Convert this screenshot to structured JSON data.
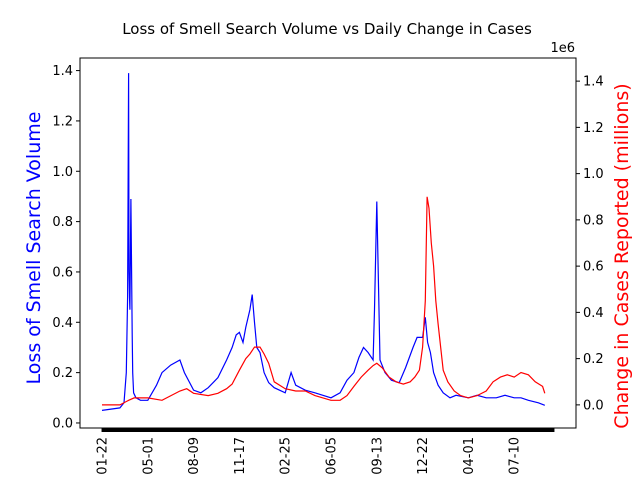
{
  "chart_data": {
    "type": "line",
    "title": "Loss of Smell Search Volume vs Daily Change in Cases",
    "left_axis": {
      "label": "Loss of Smell Search Volume",
      "color": "#0000ff",
      "ylim": [
        -0.02,
        1.45
      ],
      "ticks": [
        "0.0",
        "0.2",
        "0.4",
        "0.6",
        "0.8",
        "1.0",
        "1.2",
        "1.4"
      ]
    },
    "right_axis": {
      "label": "Change in Cases Reported (millions)",
      "color": "#ff0000",
      "offset_text": "1e6",
      "ylim": [
        -0.1,
        1.5
      ],
      "ticks": [
        "0.0",
        "0.2",
        "0.4",
        "0.6",
        "0.8",
        "1.0",
        "1.2",
        "1.4"
      ]
    },
    "x_ticks": [
      "01-22",
      "05-01",
      "08-09",
      "11-17",
      "02-25",
      "06-05",
      "09-13",
      "12-22",
      "04-01",
      "07-10"
    ],
    "x_start_date": "2020-01-22",
    "grid": false,
    "series": [
      {
        "name": "Loss of Smell Search Volume",
        "axis": "left",
        "color": "#0000ff",
        "x": [
          "2020-01-22",
          "2020-03-01",
          "2020-03-10",
          "2020-03-15",
          "2020-03-18",
          "2020-03-20",
          "2020-03-21",
          "2020-03-22",
          "2020-03-23",
          "2020-03-25",
          "2020-03-28",
          "2020-03-29",
          "2020-03-31",
          "2020-04-05",
          "2020-04-15",
          "2020-05-01",
          "2020-05-20",
          "2020-06-01",
          "2020-06-20",
          "2020-07-10",
          "2020-07-20",
          "2020-08-09",
          "2020-08-25",
          "2020-09-10",
          "2020-10-01",
          "2020-10-20",
          "2020-11-01",
          "2020-11-10",
          "2020-11-17",
          "2020-11-25",
          "2020-12-01",
          "2020-12-10",
          "2020-12-15",
          "2020-12-20",
          "2020-12-25",
          "2021-01-01",
          "2021-01-10",
          "2021-01-20",
          "2021-02-01",
          "2021-02-25",
          "2021-03-10",
          "2021-03-20",
          "2021-04-10",
          "2021-05-01",
          "2021-06-05",
          "2021-06-25",
          "2021-07-10",
          "2021-07-25",
          "2021-08-05",
          "2021-08-15",
          "2021-08-25",
          "2021-09-05",
          "2021-09-08",
          "2021-09-13",
          "2021-09-20",
          "2021-10-01",
          "2021-10-15",
          "2021-11-01",
          "2021-11-15",
          "2021-12-01",
          "2021-12-10",
          "2021-12-22",
          "2021-12-28",
          "2022-01-02",
          "2022-01-08",
          "2022-01-15",
          "2022-01-25",
          "2022-02-05",
          "2022-02-20",
          "2022-03-05",
          "2022-04-01",
          "2022-04-20",
          "2022-05-10",
          "2022-06-01",
          "2022-06-20",
          "2022-07-10",
          "2022-07-25",
          "2022-08-10",
          "2022-09-01",
          "2022-09-15"
        ],
        "y": [
          0.05,
          0.06,
          0.08,
          0.2,
          0.5,
          1.39,
          0.6,
          0.5,
          0.45,
          0.89,
          0.35,
          0.2,
          0.12,
          0.1,
          0.09,
          0.09,
          0.15,
          0.2,
          0.23,
          0.25,
          0.2,
          0.13,
          0.12,
          0.14,
          0.18,
          0.25,
          0.3,
          0.35,
          0.36,
          0.32,
          0.38,
          0.45,
          0.51,
          0.4,
          0.3,
          0.28,
          0.2,
          0.16,
          0.14,
          0.12,
          0.2,
          0.15,
          0.13,
          0.12,
          0.1,
          0.12,
          0.17,
          0.2,
          0.26,
          0.3,
          0.28,
          0.25,
          0.45,
          0.88,
          0.25,
          0.2,
          0.17,
          0.16,
          0.22,
          0.3,
          0.34,
          0.34,
          0.42,
          0.32,
          0.28,
          0.2,
          0.15,
          0.12,
          0.1,
          0.11,
          0.1,
          0.11,
          0.1,
          0.1,
          0.11,
          0.1,
          0.1,
          0.09,
          0.08,
          0.07
        ]
      },
      {
        "name": "Change in Cases Reported",
        "axis": "right",
        "color": "#ff0000",
        "x": [
          "2020-01-22",
          "2020-03-01",
          "2020-03-20",
          "2020-04-01",
          "2020-04-20",
          "2020-05-01",
          "2020-06-01",
          "2020-07-10",
          "2020-07-25",
          "2020-08-09",
          "2020-09-10",
          "2020-10-01",
          "2020-10-20",
          "2020-11-01",
          "2020-11-17",
          "2020-12-01",
          "2020-12-10",
          "2020-12-20",
          "2021-01-01",
          "2021-01-10",
          "2021-01-20",
          "2021-02-01",
          "2021-02-25",
          "2021-03-20",
          "2021-04-10",
          "2021-05-01",
          "2021-06-05",
          "2021-06-25",
          "2021-07-10",
          "2021-07-25",
          "2021-08-10",
          "2021-08-25",
          "2021-09-05",
          "2021-09-13",
          "2021-09-25",
          "2021-10-10",
          "2021-10-25",
          "2021-11-10",
          "2021-11-25",
          "2021-12-05",
          "2021-12-15",
          "2021-12-22",
          "2021-12-28",
          "2022-01-01",
          "2022-01-05",
          "2022-01-10",
          "2022-01-15",
          "2022-01-20",
          "2022-01-25",
          "2022-02-05",
          "2022-02-15",
          "2022-03-01",
          "2022-03-15",
          "2022-04-01",
          "2022-04-20",
          "2022-05-10",
          "2022-05-25",
          "2022-06-10",
          "2022-06-25",
          "2022-07-10",
          "2022-07-25",
          "2022-08-10",
          "2022-08-25",
          "2022-09-10",
          "2022-09-15"
        ],
        "y": [
          0.0,
          0.0,
          0.02,
          0.03,
          0.03,
          0.03,
          0.02,
          0.06,
          0.07,
          0.05,
          0.04,
          0.05,
          0.07,
          0.09,
          0.15,
          0.2,
          0.22,
          0.25,
          0.25,
          0.22,
          0.18,
          0.1,
          0.07,
          0.06,
          0.06,
          0.04,
          0.02,
          0.02,
          0.04,
          0.08,
          0.12,
          0.15,
          0.17,
          0.18,
          0.16,
          0.12,
          0.1,
          0.09,
          0.1,
          0.12,
          0.15,
          0.25,
          0.45,
          0.9,
          0.85,
          0.7,
          0.6,
          0.45,
          0.35,
          0.15,
          0.1,
          0.06,
          0.04,
          0.03,
          0.04,
          0.06,
          0.1,
          0.12,
          0.13,
          0.12,
          0.14,
          0.13,
          0.1,
          0.08,
          0.05
        ]
      }
    ]
  }
}
